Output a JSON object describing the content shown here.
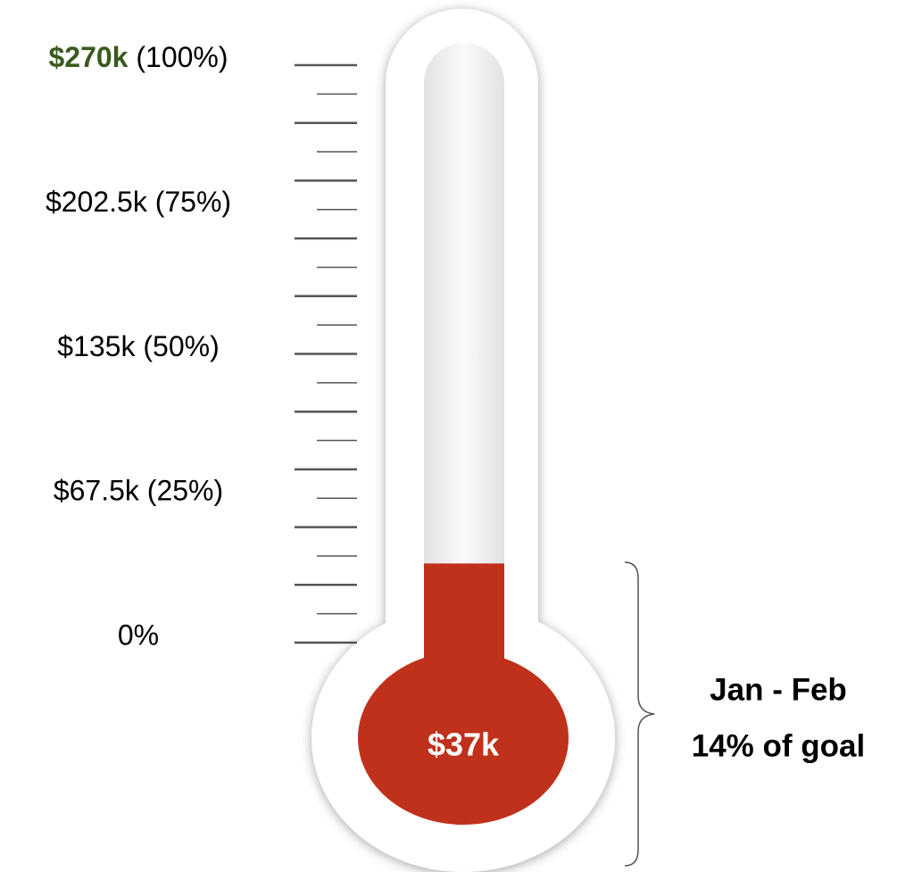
{
  "chart_data": {
    "type": "thermometer",
    "value": 37000,
    "value_label": "$37k",
    "color": "#c0311c",
    "ylim": [
      0,
      270000
    ],
    "yticks": [
      {
        "value": 0,
        "label": "0%"
      },
      {
        "value": 67500,
        "label": "$67.5k (25%)"
      },
      {
        "value": 135000,
        "label": "$135k (50%)"
      },
      {
        "value": 202500,
        "label": "$202.5k (75%)"
      },
      {
        "value": 270000,
        "label": "$270k (100%)"
      }
    ],
    "minor_yticks": [
      0,
      13500,
      27000,
      40500,
      54000,
      67500,
      81000,
      94500,
      108000,
      121500,
      135000,
      148500,
      162000,
      175500,
      189000,
      202500,
      216000,
      229500,
      243000,
      256500,
      270000
    ],
    "annotations": [
      "Jan - Feb",
      "14% of goal"
    ]
  }
}
